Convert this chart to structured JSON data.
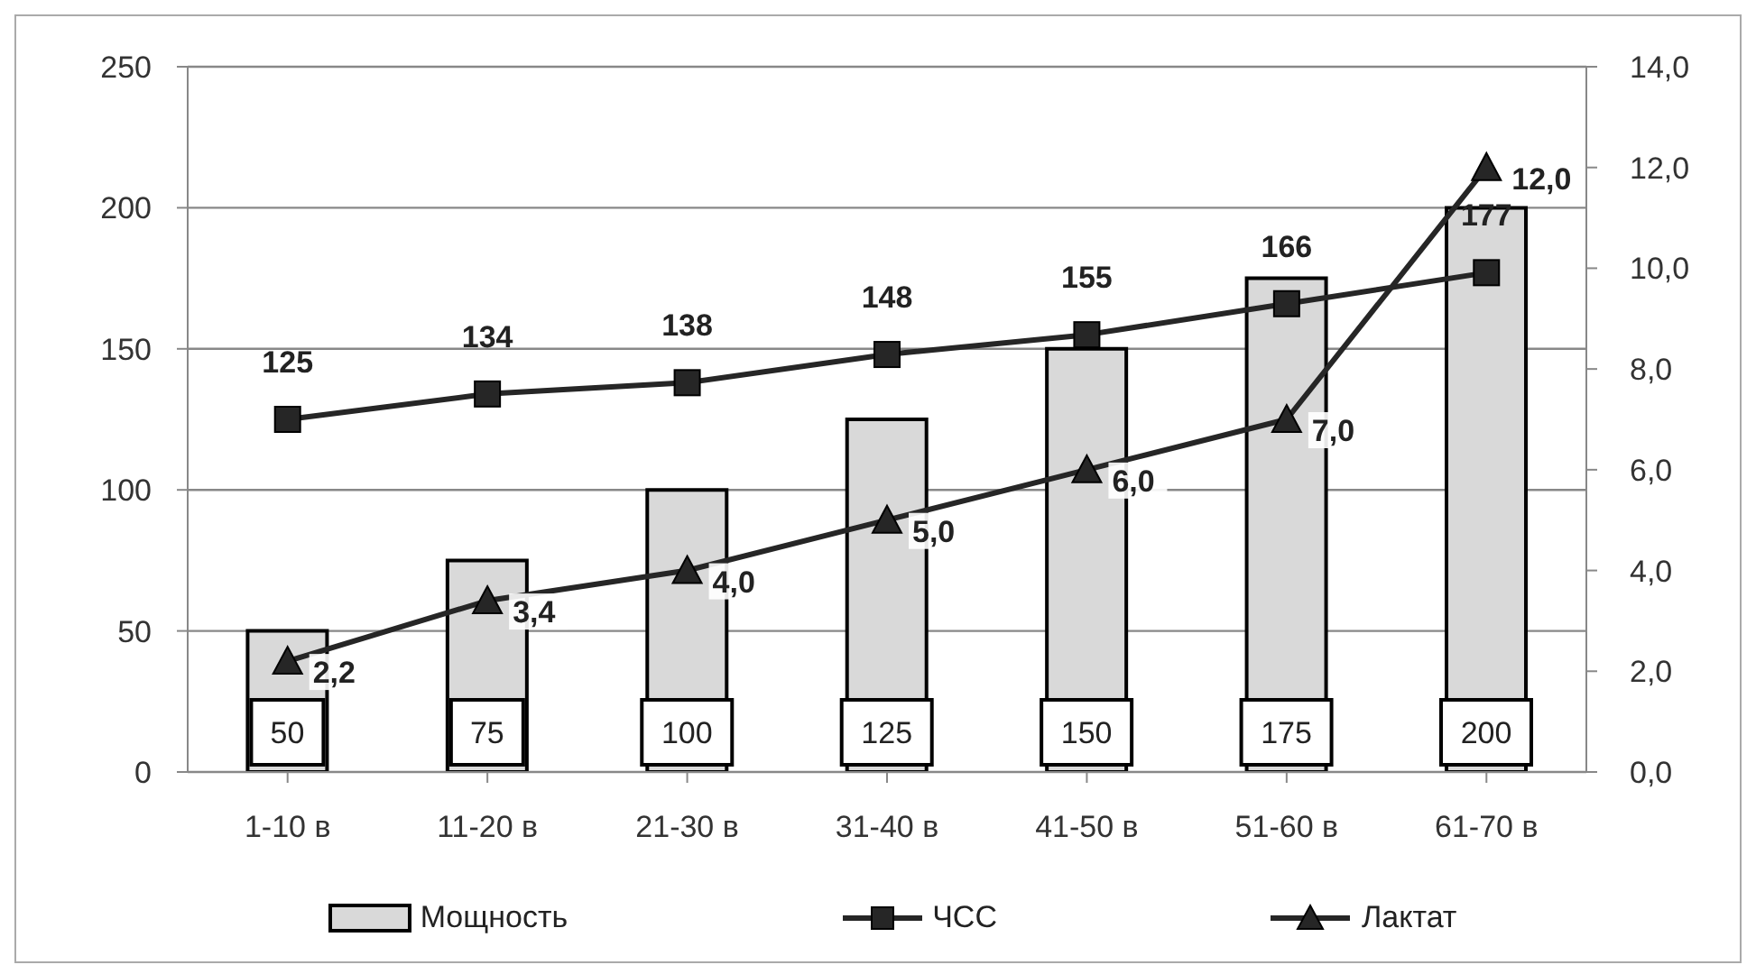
{
  "chart_data": {
    "type": "bar",
    "categories": [
      "1-10 в",
      "11-20 в",
      "21-30 в",
      "31-40 в",
      "41-50 в",
      "51-60 в",
      "61-70 в"
    ],
    "series": [
      {
        "name": "Мощность",
        "color": "#d9d9d9",
        "values": [
          50,
          75,
          100,
          125,
          150,
          175,
          200
        ],
        "value_labels": [
          "50",
          "75",
          "100",
          "125",
          "150",
          "175",
          "200"
        ]
      },
      {
        "name": "ЧСС",
        "type": "line",
        "color": "#262626",
        "marker": "square",
        "values": [
          125,
          134,
          138,
          148,
          155,
          166,
          177
        ],
        "value_labels": [
          "125",
          "134",
          "138",
          "148",
          "155",
          "166",
          "177"
        ]
      },
      {
        "name": "Лактат",
        "type": "line",
        "axis": "y2",
        "color": "#262626",
        "marker": "triangle",
        "values": [
          2.2,
          3.4,
          4.0,
          5.0,
          6.0,
          7.0,
          12.0
        ],
        "value_labels": [
          "2,2",
          "3,4",
          "4,0",
          "5,0",
          "6,0",
          "7,0",
          "12,0"
        ]
      }
    ],
    "ylim": [
      0,
      250
    ],
    "yticks": [
      0,
      50,
      100,
      150,
      200,
      250
    ],
    "y2lim": [
      0,
      14
    ],
    "y2ticks": [
      {
        "value": 0,
        "label": "0,0"
      },
      {
        "value": 2,
        "label": "2,0"
      },
      {
        "value": 4,
        "label": "4,0"
      },
      {
        "value": 6,
        "label": "6,0"
      },
      {
        "value": 8,
        "label": "8,0"
      },
      {
        "value": 10,
        "label": "10,0"
      },
      {
        "value": 12,
        "label": "12,0"
      },
      {
        "value": 14,
        "label": "14,0"
      }
    ],
    "grid": "y",
    "legend": "bottom"
  }
}
